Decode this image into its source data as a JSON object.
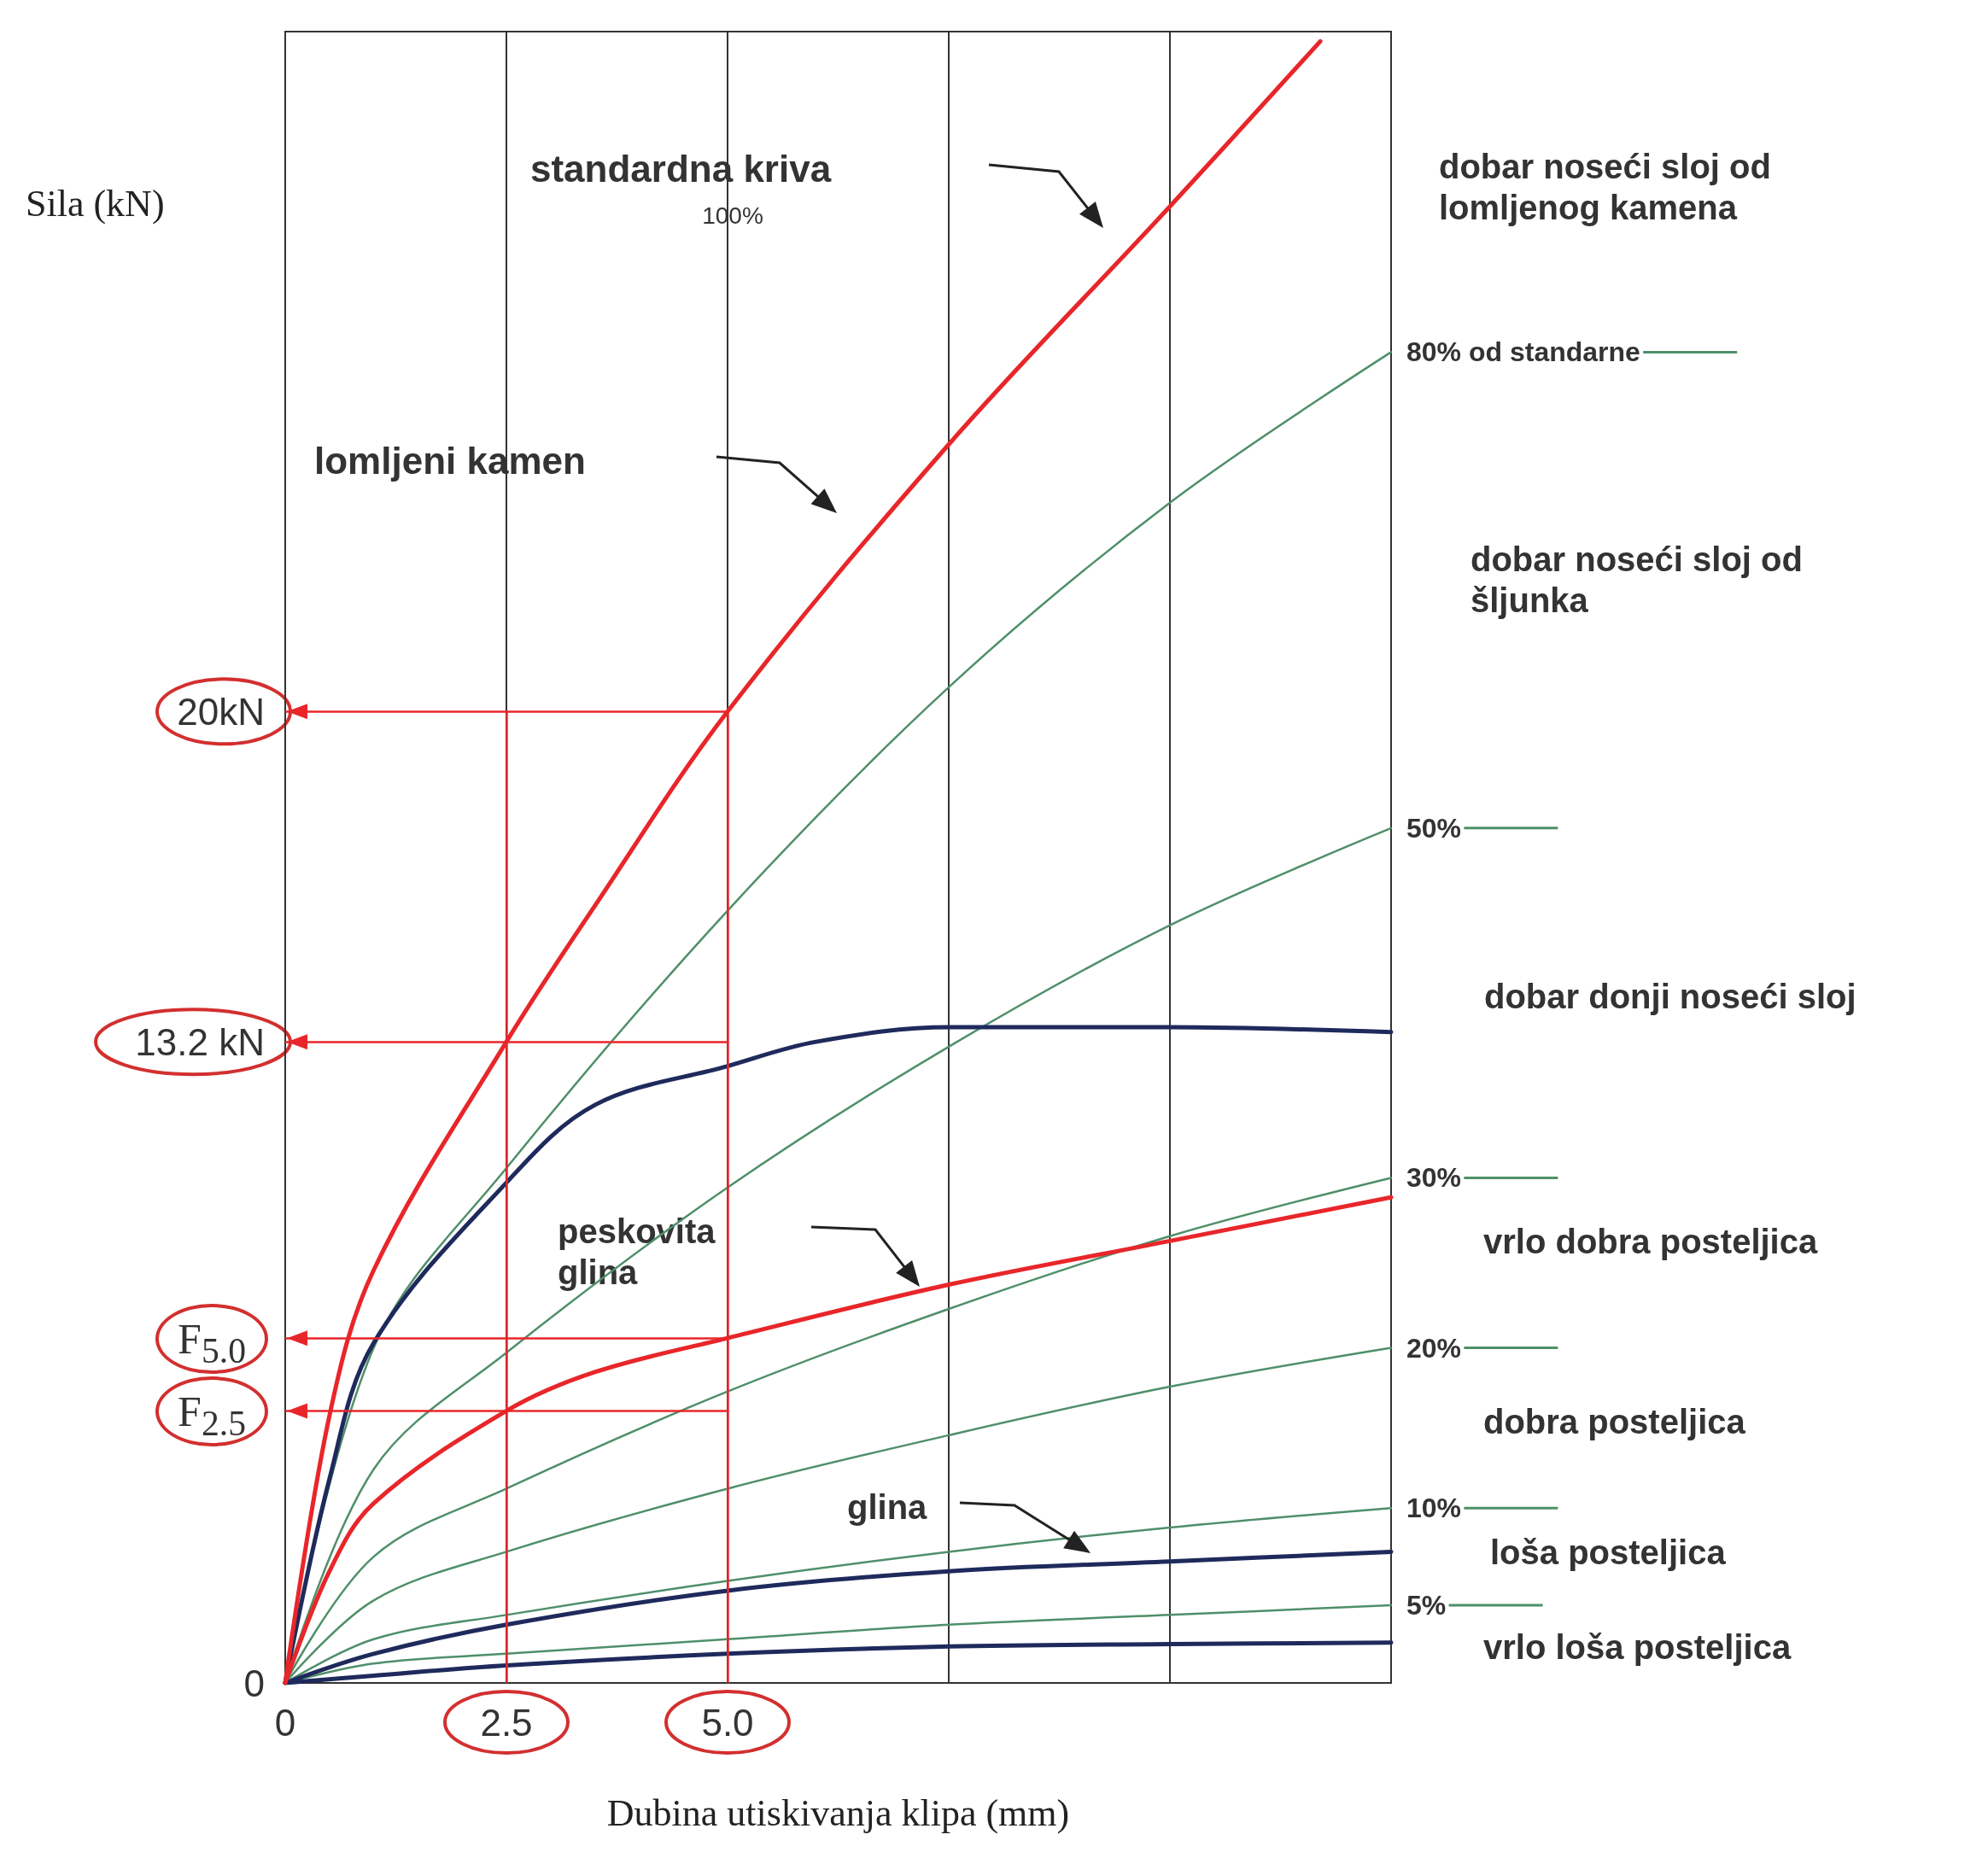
{
  "chart_data": {
    "type": "line",
    "xlabel": "Dubina utiskivanja klipa (mm)",
    "ylabel": "Sila (kN)",
    "x": [
      0,
      1,
      2.5,
      5,
      7.5,
      10,
      12.5
    ],
    "xlim": [
      0,
      12.5
    ],
    "xticks": [
      0,
      2.5,
      {
        "value": 5,
        "label": "5.0"
      },
      {
        "value": 7.5,
        "label": null
      },
      {
        "value": 10,
        "label": null
      }
    ],
    "ylim": [
      0,
      34
    ],
    "yticks": [
      0,
      {
        "value": 13.2,
        "label": "13.2 kN"
      },
      {
        "value": 20,
        "label": "20kN"
      }
    ],
    "grid": "x",
    "legend": "right",
    "series": [
      {
        "name": "80% od standarne",
        "color": "#4f8f6a",
        "values": [
          0,
          6.9,
          10.6,
          15.9,
          20.5,
          24.3,
          27.4
        ]
      },
      {
        "name": "50%",
        "color": "#4f8f6a",
        "values": [
          0,
          4.4,
          6.8,
          10.2,
          13.1,
          15.6,
          17.6
        ]
      },
      {
        "name": "30%",
        "color": "#4f8f6a",
        "values": [
          0,
          2.6,
          4.0,
          6.0,
          7.7,
          9.2,
          10.4
        ]
      },
      {
        "name": "20%",
        "color": "#4f8f6a",
        "values": [
          0,
          1.7,
          2.7,
          4.0,
          5.1,
          6.1,
          6.9
        ]
      },
      {
        "name": "10%",
        "color": "#4f8f6a",
        "values": [
          0,
          0.9,
          1.4,
          2.1,
          2.7,
          3.2,
          3.6
        ]
      },
      {
        "name": "5%",
        "color": "#4f8f6a",
        "values": [
          0,
          0.4,
          0.6,
          0.9,
          1.2,
          1.4,
          1.6
        ]
      },
      {
        "color": "#1f2a5c",
        "x": [
          0,
          0.5,
          1,
          2.5,
          3.5,
          5,
          6,
          7.5,
          10,
          12.5
        ],
        "values": [
          0,
          4.2,
          7.0,
          10.3,
          11.9,
          12.7,
          13.2,
          13.5,
          13.5,
          13.4
        ]
      },
      {
        "color": "#1f2a5c",
        "values": [
          0,
          0.6,
          1.2,
          1.9,
          2.3,
          2.5,
          2.7
        ]
      },
      {
        "color": "#1f2a5c",
        "values": [
          0,
          0.15,
          0.36,
          0.6,
          0.75,
          0.8,
          0.83
        ]
      },
      {
        "color": "#e8262a",
        "x": [
          0,
          0.5,
          1,
          2.5,
          3.5,
          5,
          7.5,
          10,
          12.5
        ],
        "values": [
          0,
          2.3,
          3.7,
          5.6,
          6.4,
          7.1,
          8.2,
          9.1,
          10.0
        ]
      },
      {
        "color": "#e8262a",
        "x": [
          0,
          0.5,
          1,
          2.5,
          3.5,
          5,
          7.5,
          10,
          11.7
        ],
        "values": [
          0,
          5.5,
          8.5,
          13.2,
          16,
          20,
          25.5,
          30.4,
          33.8
        ]
      }
    ],
    "ref_lines": [
      {
        "axis": "x",
        "value": 2.5,
        "color": "#e8262a"
      },
      {
        "axis": "x",
        "value": 5,
        "color": "#e8262a"
      },
      {
        "axis": "y",
        "value": 20,
        "color": "#e8262a"
      },
      {
        "axis": "y",
        "value": 13.2,
        "color": "#e8262a"
      },
      {
        "axis": "y",
        "value": 7.1,
        "color": "#e8262a",
        "label": "F$_{5.0}$"
      },
      {
        "axis": "y",
        "value": 5.6,
        "color": "#e8262a",
        "label": "F$_{2.5}$"
      }
    ],
    "annotations": [
      "dobar noseći sloj od lomljenog kamena",
      "dobar noseći sloj od šljunka",
      "dobar donji noseći sloj",
      "vrlo dobra posteljica",
      "dobra posteljica",
      "loša posteljica",
      "vrlo loša posteljica",
      "100%",
      "standardna kriva",
      "lomljeni kamen",
      "peskovita glina",
      "glina"
    ]
  }
}
